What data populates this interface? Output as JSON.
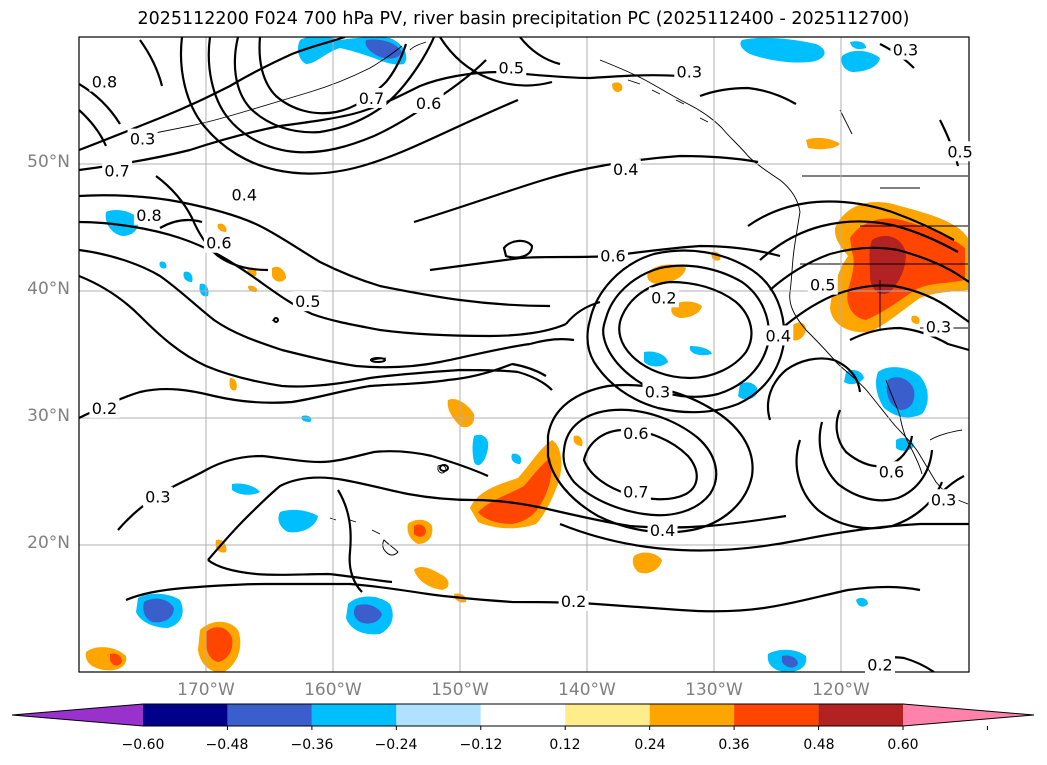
{
  "title": "2025112200 F024 700 hPa PV, river basin precipitation PC (2025112400 - 2025112700)",
  "lat_labels": [
    "50°N",
    "40°N",
    "30°N",
    "20°N"
  ],
  "lon_labels": [
    "170°W",
    "160°W",
    "150°W",
    "140°W",
    "130°W",
    "120°W"
  ],
  "map_extent": {
    "lon_min": -180,
    "lon_max": -110,
    "lat_min": 10,
    "lat_max": 60
  },
  "grid": {
    "lons": [
      -170,
      -160,
      -150,
      -140,
      -130,
      -120
    ],
    "lats": [
      20,
      30,
      40,
      50
    ]
  },
  "contour_labels": [
    {
      "text": "0.8",
      "lon": -178,
      "lat": 56.5
    },
    {
      "text": "0.3",
      "lon": -175,
      "lat": 52
    },
    {
      "text": "0.7",
      "lon": -177,
      "lat": 49.5
    },
    {
      "text": "0.4",
      "lon": -167,
      "lat": 47.6
    },
    {
      "text": "0.6",
      "lon": -169,
      "lat": 43.8
    },
    {
      "text": "0.5",
      "lon": -162,
      "lat": 39.2
    },
    {
      "text": "0.7",
      "lon": -157,
      "lat": 55.2
    },
    {
      "text": "0.6",
      "lon": -152.5,
      "lat": 54.8
    },
    {
      "text": "0.5",
      "lon": -146,
      "lat": 57.6
    },
    {
      "text": "0.8",
      "lon": -174.5,
      "lat": 46
    },
    {
      "text": "0.4",
      "lon": -137,
      "lat": 49.6
    },
    {
      "text": "0.6",
      "lon": -138,
      "lat": 42.8
    },
    {
      "text": "0.2",
      "lon": -134,
      "lat": 39.5
    },
    {
      "text": "0.4",
      "lon": -125,
      "lat": 36.5
    },
    {
      "text": "0.5",
      "lon": -121.5,
      "lat": 40.5
    },
    {
      "text": "0.3",
      "lon": -134.5,
      "lat": 32.1
    },
    {
      "text": "0.6",
      "lon": -136.2,
      "lat": 28.8
    },
    {
      "text": "0.7",
      "lon": -136.2,
      "lat": 24.2
    },
    {
      "text": "0.4",
      "lon": -134.1,
      "lat": 21.2
    },
    {
      "text": "0.2",
      "lon": -178,
      "lat": 30.8
    },
    {
      "text": "0.3",
      "lon": -173.8,
      "lat": 23.8
    },
    {
      "text": "0.2",
      "lon": -141.1,
      "lat": 15.6
    },
    {
      "text": "0.3",
      "lon": -132,
      "lat": 57.3
    },
    {
      "text": "0.3",
      "lon": -115,
      "lat": 59
    },
    {
      "text": "0.5",
      "lon": -110.7,
      "lat": 51
    },
    {
      "text": "0.3",
      "lon": -112.4,
      "lat": 37.2
    },
    {
      "text": "0.6",
      "lon": -116.1,
      "lat": 25.8
    },
    {
      "text": "0.3",
      "lon": -112,
      "lat": 23.6
    },
    {
      "text": "0.2",
      "lon": -117,
      "lat": 10.6
    }
  ],
  "colorbar": {
    "colors": [
      "#9932cc",
      "#00008b",
      "#3a5fcd",
      "#00bfff",
      "#b0e2ff",
      "#ffffff",
      "#ffec8b",
      "#ffa500",
      "#ff4500",
      "#b22222",
      "#ff82ab"
    ],
    "tick_labels": [
      "−0.60",
      "−0.48",
      "−0.36",
      "−0.24",
      "−0.12",
      "0.12",
      "0.24",
      "0.36",
      "0.48",
      "0.60"
    ]
  }
}
